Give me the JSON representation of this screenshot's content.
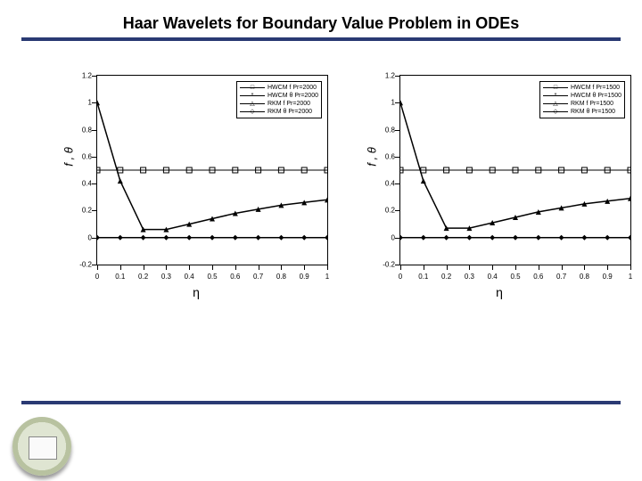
{
  "title": "Haar Wavelets for Boundary Value Problem in ODEs",
  "divider_color": "#2a3a73",
  "charts": [
    {
      "type": "line",
      "xlabel": "η",
      "ylabel": "f , θ",
      "xlim": [
        0,
        1
      ],
      "ylim": [
        -0.2,
        1.2
      ],
      "xticks": [
        0,
        0.1,
        0.2,
        0.3,
        0.4,
        0.5,
        0.6,
        0.7,
        0.8,
        0.9,
        1
      ],
      "yticks": [
        -0.2,
        0,
        0.2,
        0.4,
        0.6,
        0.8,
        1,
        1.2
      ],
      "xtick_labels": [
        "0",
        "0.1",
        "0.2",
        "0.3",
        "0.4",
        "0.5",
        "0.6",
        "0.7",
        "0.8",
        "0.9",
        "1"
      ],
      "ytick_labels": [
        "-0.2",
        "0",
        "0.2",
        "0.4",
        "0.6",
        "0.8",
        "1",
        "1.2"
      ],
      "legend": [
        {
          "label": "HWCM f Pr=2000",
          "marker": "square"
        },
        {
          "label": "HWCM θ Pr=2000",
          "marker": "star"
        },
        {
          "label": "RKM f Pr=2000",
          "marker": "triangle"
        },
        {
          "label": "RKM θ Pr=2000",
          "marker": "diamond"
        }
      ],
      "series": [
        {
          "name": "f",
          "marker": "triangle",
          "color": "#000000",
          "line_width": 1.5,
          "x": [
            0,
            0.1,
            0.2,
            0.3,
            0.4,
            0.5,
            0.6,
            0.7,
            0.8,
            0.9,
            1.0
          ],
          "y": [
            1.0,
            0.42,
            0.06,
            0.06,
            0.1,
            0.14,
            0.18,
            0.21,
            0.24,
            0.26,
            0.28
          ]
        },
        {
          "name": "theta",
          "marker": "diamond",
          "color": "#000000",
          "line_width": 1.5,
          "x": [
            0,
            0.1,
            0.2,
            0.3,
            0.4,
            0.5,
            0.6,
            0.7,
            0.8,
            0.9,
            1.0
          ],
          "y": [
            0,
            0,
            0,
            0,
            0,
            0,
            0,
            0,
            0,
            0,
            0
          ]
        },
        {
          "name": "f2",
          "marker": "square",
          "color": "#000000",
          "line_width": 1.0,
          "x": [
            0,
            0.1,
            0.2,
            0.3,
            0.4,
            0.5,
            0.6,
            0.7,
            0.8,
            0.9,
            1.0
          ],
          "y": [
            0.5,
            0.5,
            0.5,
            0.5,
            0.5,
            0.5,
            0.5,
            0.5,
            0.5,
            0.5,
            0.5
          ]
        }
      ],
      "label_fontsize": 13,
      "tick_fontsize": 8,
      "legend_fontsize": 7,
      "background_color": "#ffffff"
    },
    {
      "type": "line",
      "xlabel": "η",
      "ylabel": "f , θ",
      "xlim": [
        0,
        1
      ],
      "ylim": [
        -0.2,
        1.2
      ],
      "xticks": [
        0,
        0.1,
        0.2,
        0.3,
        0.4,
        0.5,
        0.6,
        0.7,
        0.8,
        0.9,
        1
      ],
      "yticks": [
        -0.2,
        0,
        0.2,
        0.4,
        0.6,
        0.8,
        1,
        1.2
      ],
      "xtick_labels": [
        "0",
        "0.1",
        "0.2",
        "0.3",
        "0.4",
        "0.5",
        "0.6",
        "0.7",
        "0.8",
        "0.9",
        "1"
      ],
      "ytick_labels": [
        "-0.2",
        "0",
        "0.2",
        "0.4",
        "0.6",
        "0.8",
        "1",
        "1.2"
      ],
      "legend": [
        {
          "label": "HWCM f Pr=1500",
          "marker": "square"
        },
        {
          "label": "HWCM θ Pr=1500",
          "marker": "star"
        },
        {
          "label": "RKM f Pr=1500",
          "marker": "triangle"
        },
        {
          "label": "RKM θ Pr=1500",
          "marker": "diamond"
        }
      ],
      "series": [
        {
          "name": "f",
          "marker": "triangle",
          "color": "#000000",
          "line_width": 1.5,
          "x": [
            0,
            0.1,
            0.2,
            0.3,
            0.4,
            0.5,
            0.6,
            0.7,
            0.8,
            0.9,
            1.0
          ],
          "y": [
            1.0,
            0.42,
            0.07,
            0.07,
            0.11,
            0.15,
            0.19,
            0.22,
            0.25,
            0.27,
            0.29
          ]
        },
        {
          "name": "theta",
          "marker": "diamond",
          "color": "#000000",
          "line_width": 1.5,
          "x": [
            0,
            0.1,
            0.2,
            0.3,
            0.4,
            0.5,
            0.6,
            0.7,
            0.8,
            0.9,
            1.0
          ],
          "y": [
            0,
            0,
            0,
            0,
            0,
            0,
            0,
            0,
            0,
            0,
            0
          ]
        },
        {
          "name": "f2",
          "marker": "square",
          "color": "#000000",
          "line_width": 1.0,
          "x": [
            0,
            0.1,
            0.2,
            0.3,
            0.4,
            0.5,
            0.6,
            0.7,
            0.8,
            0.9,
            1.0
          ],
          "y": [
            0.5,
            0.5,
            0.5,
            0.5,
            0.5,
            0.5,
            0.5,
            0.5,
            0.5,
            0.5,
            0.5
          ]
        }
      ],
      "label_fontsize": 13,
      "tick_fontsize": 8,
      "legend_fontsize": 7,
      "background_color": "#ffffff"
    }
  ]
}
